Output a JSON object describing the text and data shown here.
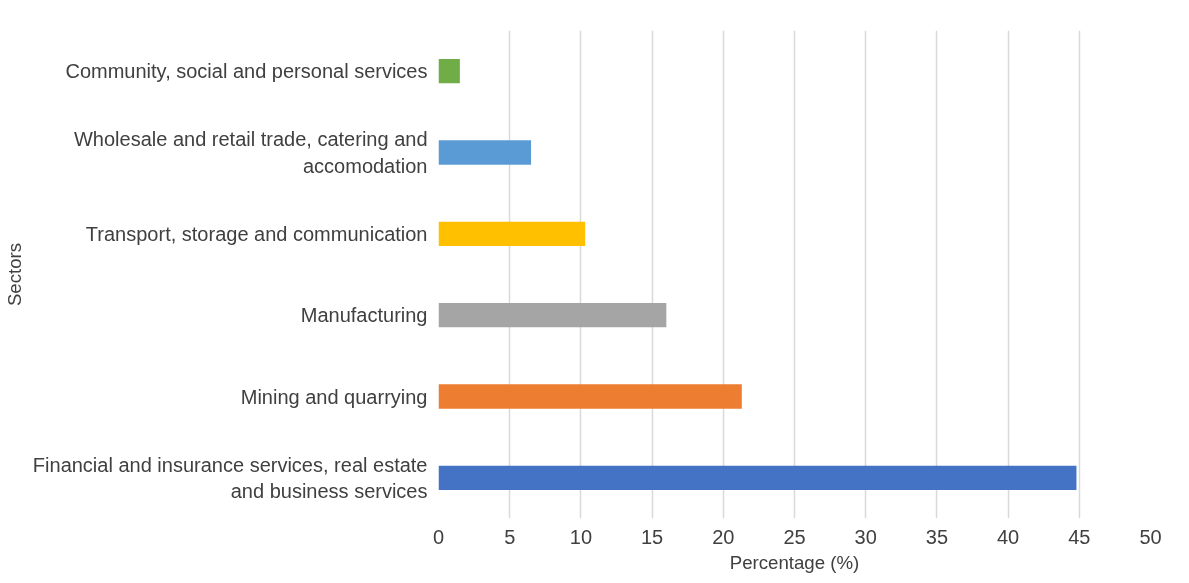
{
  "chart_data": {
    "type": "bar",
    "orientation": "horizontal",
    "ylabel": "Sectors",
    "xlabel": "Percentage (%)",
    "categories": [
      "Community, social and personal services",
      "Wholesale and retail trade, catering and accomodation",
      "Transport, storage and communication",
      "Manufacturing",
      "Mining and quarrying",
      "Financial and insurance services, real estate and business services"
    ],
    "values": [
      1.5,
      6.5,
      10.3,
      16,
      21.3,
      44.8
    ],
    "colors": [
      "#70ad47",
      "#5b9bd5",
      "#ffc000",
      "#a5a5a5",
      "#ed7d31",
      "#4472c4"
    ],
    "xlim": [
      0,
      50
    ],
    "xticks": [
      0,
      5,
      10,
      15,
      20,
      25,
      30,
      35,
      40,
      45,
      50
    ],
    "grid": "x"
  }
}
